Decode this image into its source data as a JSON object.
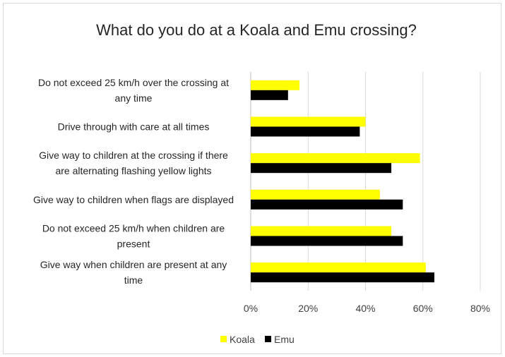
{
  "chart_data": {
    "type": "bar",
    "orientation": "horizontal",
    "title": "What do you do at a Koala and Emu crossing?",
    "categories": [
      [
        "Do not exceed 25 km/h over the crossing at",
        "any time"
      ],
      [
        "Drive through with care at all times"
      ],
      [
        "Give way to children at the crossing if there",
        "are alternating flashing yellow lights"
      ],
      [
        "Give way to children when flags are displayed"
      ],
      [
        "Do not exceed 25 km/h when children are",
        "present"
      ],
      [
        "Give way when children are present at any",
        "time"
      ]
    ],
    "series": [
      {
        "name": "Koala",
        "color": "#ffff00",
        "values": [
          17,
          40,
          59,
          45,
          49,
          61
        ]
      },
      {
        "name": "Emu",
        "color": "#000000",
        "values": [
          13,
          38,
          49,
          53,
          53,
          64
        ]
      }
    ],
    "xlim": [
      0,
      80
    ],
    "xticks": [
      0,
      20,
      40,
      60,
      80
    ],
    "xtick_labels": [
      "0%",
      "20%",
      "40%",
      "60%",
      "80%"
    ],
    "unit": "%",
    "grid": true,
    "legend": {
      "position": "bottom",
      "entries": [
        "Koala",
        "Emu"
      ]
    }
  }
}
